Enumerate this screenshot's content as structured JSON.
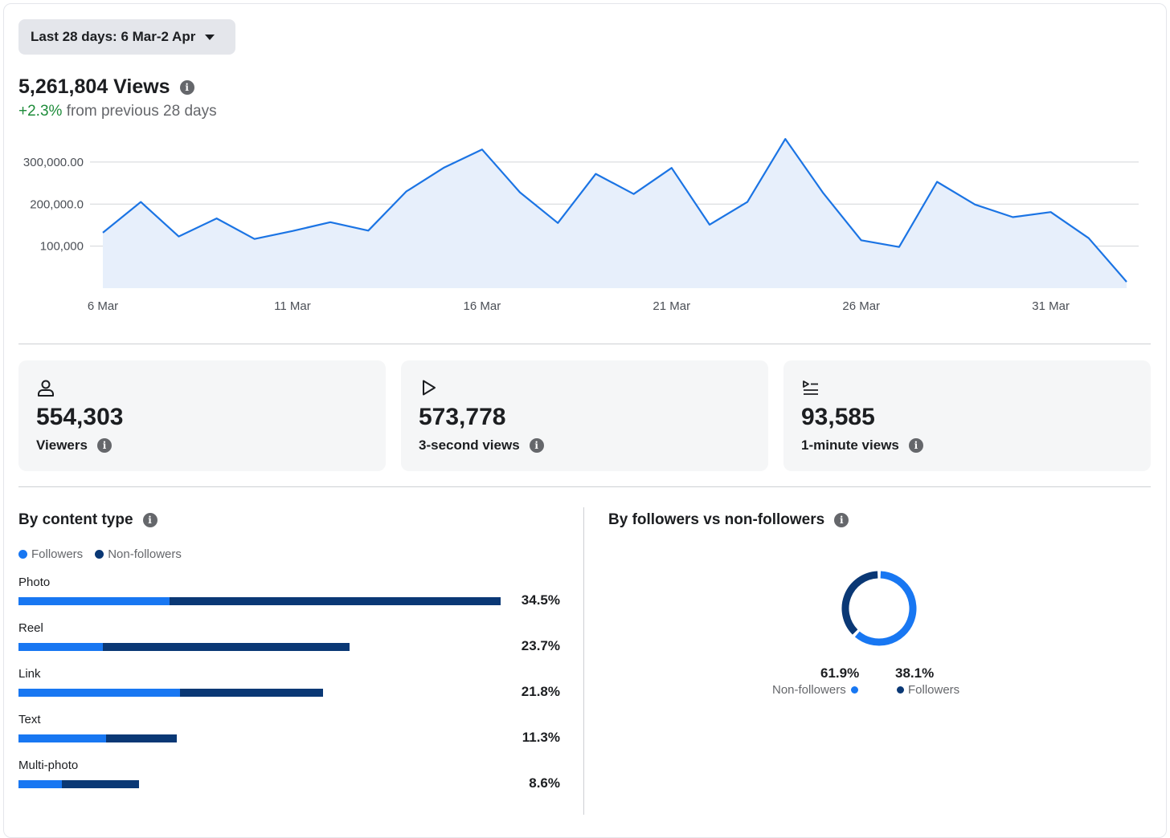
{
  "date_range": {
    "label": "Last 28 days: 6 Mar-2 Apr"
  },
  "summary": {
    "views_title": "5,261,804 Views",
    "change_pct": "+2.3%",
    "change_text": "from previous 28 days"
  },
  "colors": {
    "line": "#1b74e4",
    "area": "#e7effb",
    "followers": "#1877f2",
    "non_followers": "#0a3875",
    "positive": "#1e8c3a"
  },
  "chart_data": {
    "type": "area",
    "title": "5,261,804 Views",
    "x": [
      "6 Mar",
      "7 Mar",
      "8 Mar",
      "9 Mar",
      "10 Mar",
      "11 Mar",
      "12 Mar",
      "13 Mar",
      "14 Mar",
      "15 Mar",
      "16 Mar",
      "17 Mar",
      "18 Mar",
      "19 Mar",
      "20 Mar",
      "21 Mar",
      "22 Mar",
      "23 Mar",
      "24 Mar",
      "25 Mar",
      "26 Mar",
      "27 Mar",
      "28 Mar",
      "29 Mar",
      "30 Mar",
      "31 Mar",
      "1 Apr",
      "2 Apr"
    ],
    "values": [
      132000,
      205000,
      123000,
      166000,
      117000,
      136000,
      157000,
      137000,
      230000,
      287000,
      330000,
      228000,
      155000,
      272000,
      224000,
      286000,
      151000,
      205000,
      355000,
      226000,
      114000,
      98000,
      253000,
      199000,
      169000,
      181000,
      119000,
      15000
    ],
    "x_tick_labels": [
      "6 Mar",
      "11 Mar",
      "16 Mar",
      "21 Mar",
      "26 Mar",
      "31 Mar"
    ],
    "y_ticks": [
      100000,
      200000,
      300000
    ],
    "y_tick_labels": [
      "100,000",
      "200,000.0",
      "300,000.00"
    ],
    "ylim": [
      0,
      380000
    ],
    "grid": true
  },
  "stats": [
    {
      "icon": "person-icon",
      "value": "554,303",
      "label": "Viewers"
    },
    {
      "icon": "play-icon",
      "value": "573,778",
      "label": "3-second views"
    },
    {
      "icon": "playlist-icon",
      "value": "93,585",
      "label": "1-minute views"
    }
  ],
  "content_type": {
    "title": "By content type",
    "legend": {
      "followers": "Followers",
      "non_followers": "Non-followers"
    },
    "bars": [
      {
        "label": "Photo",
        "pct": "34.5%",
        "total": 34.5,
        "followers_share": 0.313
      },
      {
        "label": "Reel",
        "pct": "23.7%",
        "total": 23.7,
        "followers_share": 0.254
      },
      {
        "label": "Link",
        "pct": "21.8%",
        "total": 21.8,
        "followers_share": 0.529
      },
      {
        "label": "Text",
        "pct": "11.3%",
        "total": 11.3,
        "followers_share": 0.556
      },
      {
        "label": "Multi-photo",
        "pct": "8.6%",
        "total": 8.6,
        "followers_share": 0.362
      }
    ]
  },
  "followers_split": {
    "title": "By followers vs non-followers",
    "non_followers": {
      "pct": "61.9%",
      "label": "Non-followers",
      "value": 61.9
    },
    "followers": {
      "pct": "38.1%",
      "label": "Followers",
      "value": 38.1
    }
  }
}
